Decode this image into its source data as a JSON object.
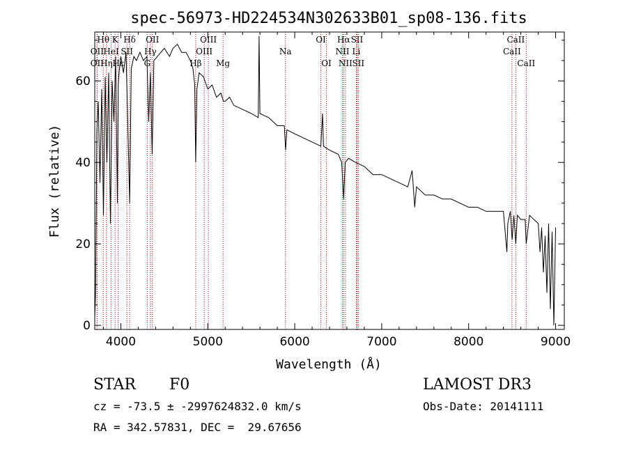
{
  "chart_data": {
    "type": "line",
    "title": "spec-56973-HD224534N302633B01_sp08-136.fits",
    "xlabel": "Wavelength (Å)",
    "ylabel": "Flux (relative)",
    "xlim": [
      3700,
      9100
    ],
    "ylim": [
      -1,
      72
    ],
    "x_ticks": [
      4000,
      5000,
      6000,
      7000,
      8000,
      9000
    ],
    "y_ticks": [
      0,
      20,
      40,
      60
    ],
    "x_tick_labels": [
      "4000",
      "5000",
      "6000",
      "7000",
      "8000",
      "9000"
    ],
    "y_tick_labels": [
      "0",
      "20",
      "40",
      "60"
    ],
    "grid": false,
    "series": [
      {
        "name": "flux",
        "x": [
          3700,
          3710,
          3725,
          3740,
          3760,
          3780,
          3800,
          3820,
          3840,
          3860,
          3880,
          3900,
          3920,
          3940,
          3960,
          3970,
          3980,
          4000,
          4030,
          4060,
          4080,
          4101,
          4120,
          4150,
          4180,
          4220,
          4260,
          4300,
          4320,
          4340,
          4360,
          4380,
          4420,
          4460,
          4500,
          4560,
          4600,
          4650,
          4700,
          4750,
          4800,
          4830,
          4850,
          4861,
          4875,
          4900,
          4950,
          5000,
          5050,
          5100,
          5150,
          5180,
          5200,
          5250,
          5300,
          5400,
          5500,
          5580,
          5590,
          5600,
          5700,
          5800,
          5880,
          5895,
          5910,
          6000,
          6100,
          6200,
          6300,
          6320,
          6330,
          6400,
          6500,
          6540,
          6563,
          6580,
          6620,
          6700,
          6800,
          6900,
          7000,
          7100,
          7200,
          7300,
          7350,
          7380,
          7400,
          7450,
          7500,
          7600,
          7700,
          7800,
          7900,
          8000,
          8100,
          8200,
          8300,
          8400,
          8440,
          8450,
          8480,
          8500,
          8520,
          8542,
          8560,
          8600,
          8650,
          8662,
          8700,
          8750,
          8800,
          8820,
          8840,
          8860,
          8880,
          8900,
          8920,
          8940,
          8960,
          8980,
          9000
        ],
        "values": [
          2,
          8,
          48,
          55,
          35,
          58,
          27,
          61,
          40,
          62,
          25,
          60,
          50,
          66,
          30,
          59,
          62,
          66,
          62,
          67,
          50,
          30,
          63,
          66,
          65,
          67,
          65,
          66,
          50,
          62,
          42,
          65,
          66,
          67,
          68,
          66,
          68,
          69,
          67,
          67,
          65,
          63,
          59,
          40,
          58,
          62,
          61,
          58,
          59,
          56,
          57,
          55,
          55,
          56,
          54,
          53,
          52,
          51,
          71,
          52,
          51,
          49,
          49,
          43,
          48,
          47,
          46,
          45,
          44,
          52,
          44,
          43,
          42,
          40,
          31,
          40,
          41,
          40,
          39,
          37,
          37,
          36,
          35,
          34,
          38,
          29,
          34,
          33,
          32,
          32,
          31,
          31,
          30,
          29,
          29,
          28,
          28,
          28,
          18,
          25,
          28,
          21,
          27,
          20,
          27,
          26,
          26,
          20,
          27,
          26,
          25,
          18,
          24,
          13,
          22,
          8,
          25,
          4,
          23,
          0,
          24
        ]
      }
    ],
    "line_markers": [
      {
        "label": "Hθ",
        "x": 3798,
        "row": 1
      },
      {
        "label": "OII",
        "x": 3727,
        "row": 2
      },
      {
        "label": "OII",
        "x": 3727,
        "row": 3
      },
      {
        "label": "Hη",
        "x": 3835,
        "row": 3
      },
      {
        "label": "HeI",
        "x": 3889,
        "row": 2
      },
      {
        "label": "K",
        "x": 3934,
        "row": 1
      },
      {
        "label": "SII",
        "x": 4070,
        "row": 2
      },
      {
        "label": "Hε",
        "x": 3970,
        "row": 3
      },
      {
        "label": "Hδ",
        "x": 4101,
        "row": 1
      },
      {
        "label": "Hγ",
        "x": 4340,
        "row": 2
      },
      {
        "label": "OII",
        "x": 4363,
        "row": 1
      },
      {
        "label": "G",
        "x": 4304,
        "row": 3
      },
      {
        "label": "OIII",
        "x": 5007,
        "row": 1
      },
      {
        "label": "OIII",
        "x": 4959,
        "row": 2
      },
      {
        "label": "Hβ",
        "x": 4861,
        "row": 3
      },
      {
        "label": "Mg",
        "x": 5175,
        "row": 3
      },
      {
        "label": "Na",
        "x": 5893,
        "row": 2
      },
      {
        "label": "OI",
        "x": 6300,
        "row": 1
      },
      {
        "label": "OI",
        "x": 6364,
        "row": 3
      },
      {
        "label": "Hα",
        "x": 6563,
        "row": 1
      },
      {
        "label": "NII",
        "x": 6548,
        "row": 2
      },
      {
        "label": "NII",
        "x": 6583,
        "row": 3
      },
      {
        "label": "SII",
        "x": 6716,
        "row": 1
      },
      {
        "label": "Li",
        "x": 6708,
        "row": 2
      },
      {
        "label": "SII",
        "x": 6731,
        "row": 3
      },
      {
        "label": "CaII",
        "x": 8542,
        "row": 1
      },
      {
        "label": "CaII",
        "x": 8498,
        "row": 2
      },
      {
        "label": "CaII",
        "x": 8662,
        "row": 3
      }
    ],
    "colors": {
      "axis": "#000000",
      "line": "#000000",
      "marker": "#b00000"
    }
  },
  "footer": {
    "object_type": "STAR",
    "subclass": "F0",
    "survey": "LAMOST DR3",
    "cz": "cz = -73.5 ± -2997624832.0 km/s",
    "obs_date": "Obs-Date: 20141111",
    "coords": "RA = 342.57831, DEC =  29.67656"
  }
}
